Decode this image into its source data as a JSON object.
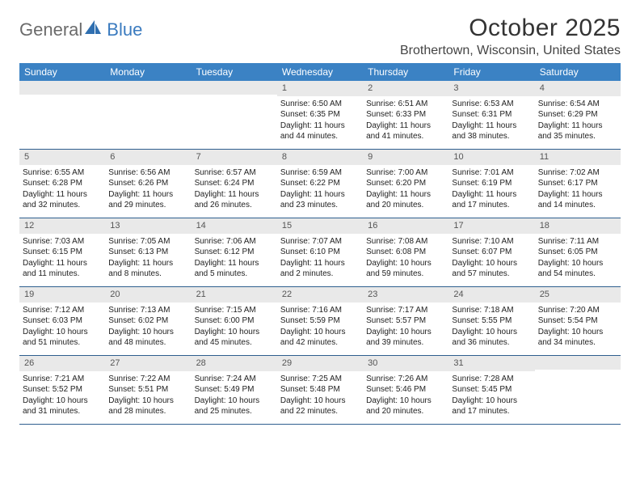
{
  "logo": {
    "text1": "General",
    "text2": "Blue"
  },
  "title": "October 2025",
  "location": "Brothertown, Wisconsin, United States",
  "colors": {
    "header_bg": "#3b82c4",
    "header_text": "#ffffff",
    "daynum_bg": "#e9e9e9",
    "daynum_text": "#555555",
    "rule": "#2f5f8f",
    "body_text": "#222222"
  },
  "dayNames": [
    "Sunday",
    "Monday",
    "Tuesday",
    "Wednesday",
    "Thursday",
    "Friday",
    "Saturday"
  ],
  "startDow": 3,
  "daysInMonth": 31,
  "days": {
    "1": {
      "sunrise": "6:50 AM",
      "sunset": "6:35 PM",
      "daylight": "11 hours and 44 minutes."
    },
    "2": {
      "sunrise": "6:51 AM",
      "sunset": "6:33 PM",
      "daylight": "11 hours and 41 minutes."
    },
    "3": {
      "sunrise": "6:53 AM",
      "sunset": "6:31 PM",
      "daylight": "11 hours and 38 minutes."
    },
    "4": {
      "sunrise": "6:54 AM",
      "sunset": "6:29 PM",
      "daylight": "11 hours and 35 minutes."
    },
    "5": {
      "sunrise": "6:55 AM",
      "sunset": "6:28 PM",
      "daylight": "11 hours and 32 minutes."
    },
    "6": {
      "sunrise": "6:56 AM",
      "sunset": "6:26 PM",
      "daylight": "11 hours and 29 minutes."
    },
    "7": {
      "sunrise": "6:57 AM",
      "sunset": "6:24 PM",
      "daylight": "11 hours and 26 minutes."
    },
    "8": {
      "sunrise": "6:59 AM",
      "sunset": "6:22 PM",
      "daylight": "11 hours and 23 minutes."
    },
    "9": {
      "sunrise": "7:00 AM",
      "sunset": "6:20 PM",
      "daylight": "11 hours and 20 minutes."
    },
    "10": {
      "sunrise": "7:01 AM",
      "sunset": "6:19 PM",
      "daylight": "11 hours and 17 minutes."
    },
    "11": {
      "sunrise": "7:02 AM",
      "sunset": "6:17 PM",
      "daylight": "11 hours and 14 minutes."
    },
    "12": {
      "sunrise": "7:03 AM",
      "sunset": "6:15 PM",
      "daylight": "11 hours and 11 minutes."
    },
    "13": {
      "sunrise": "7:05 AM",
      "sunset": "6:13 PM",
      "daylight": "11 hours and 8 minutes."
    },
    "14": {
      "sunrise": "7:06 AM",
      "sunset": "6:12 PM",
      "daylight": "11 hours and 5 minutes."
    },
    "15": {
      "sunrise": "7:07 AM",
      "sunset": "6:10 PM",
      "daylight": "11 hours and 2 minutes."
    },
    "16": {
      "sunrise": "7:08 AM",
      "sunset": "6:08 PM",
      "daylight": "10 hours and 59 minutes."
    },
    "17": {
      "sunrise": "7:10 AM",
      "sunset": "6:07 PM",
      "daylight": "10 hours and 57 minutes."
    },
    "18": {
      "sunrise": "7:11 AM",
      "sunset": "6:05 PM",
      "daylight": "10 hours and 54 minutes."
    },
    "19": {
      "sunrise": "7:12 AM",
      "sunset": "6:03 PM",
      "daylight": "10 hours and 51 minutes."
    },
    "20": {
      "sunrise": "7:13 AM",
      "sunset": "6:02 PM",
      "daylight": "10 hours and 48 minutes."
    },
    "21": {
      "sunrise": "7:15 AM",
      "sunset": "6:00 PM",
      "daylight": "10 hours and 45 minutes."
    },
    "22": {
      "sunrise": "7:16 AM",
      "sunset": "5:59 PM",
      "daylight": "10 hours and 42 minutes."
    },
    "23": {
      "sunrise": "7:17 AM",
      "sunset": "5:57 PM",
      "daylight": "10 hours and 39 minutes."
    },
    "24": {
      "sunrise": "7:18 AM",
      "sunset": "5:55 PM",
      "daylight": "10 hours and 36 minutes."
    },
    "25": {
      "sunrise": "7:20 AM",
      "sunset": "5:54 PM",
      "daylight": "10 hours and 34 minutes."
    },
    "26": {
      "sunrise": "7:21 AM",
      "sunset": "5:52 PM",
      "daylight": "10 hours and 31 minutes."
    },
    "27": {
      "sunrise": "7:22 AM",
      "sunset": "5:51 PM",
      "daylight": "10 hours and 28 minutes."
    },
    "28": {
      "sunrise": "7:24 AM",
      "sunset": "5:49 PM",
      "daylight": "10 hours and 25 minutes."
    },
    "29": {
      "sunrise": "7:25 AM",
      "sunset": "5:48 PM",
      "daylight": "10 hours and 22 minutes."
    },
    "30": {
      "sunrise": "7:26 AM",
      "sunset": "5:46 PM",
      "daylight": "10 hours and 20 minutes."
    },
    "31": {
      "sunrise": "7:28 AM",
      "sunset": "5:45 PM",
      "daylight": "10 hours and 17 minutes."
    }
  },
  "labels": {
    "sunrise": "Sunrise:",
    "sunset": "Sunset:",
    "daylight": "Daylight:"
  }
}
